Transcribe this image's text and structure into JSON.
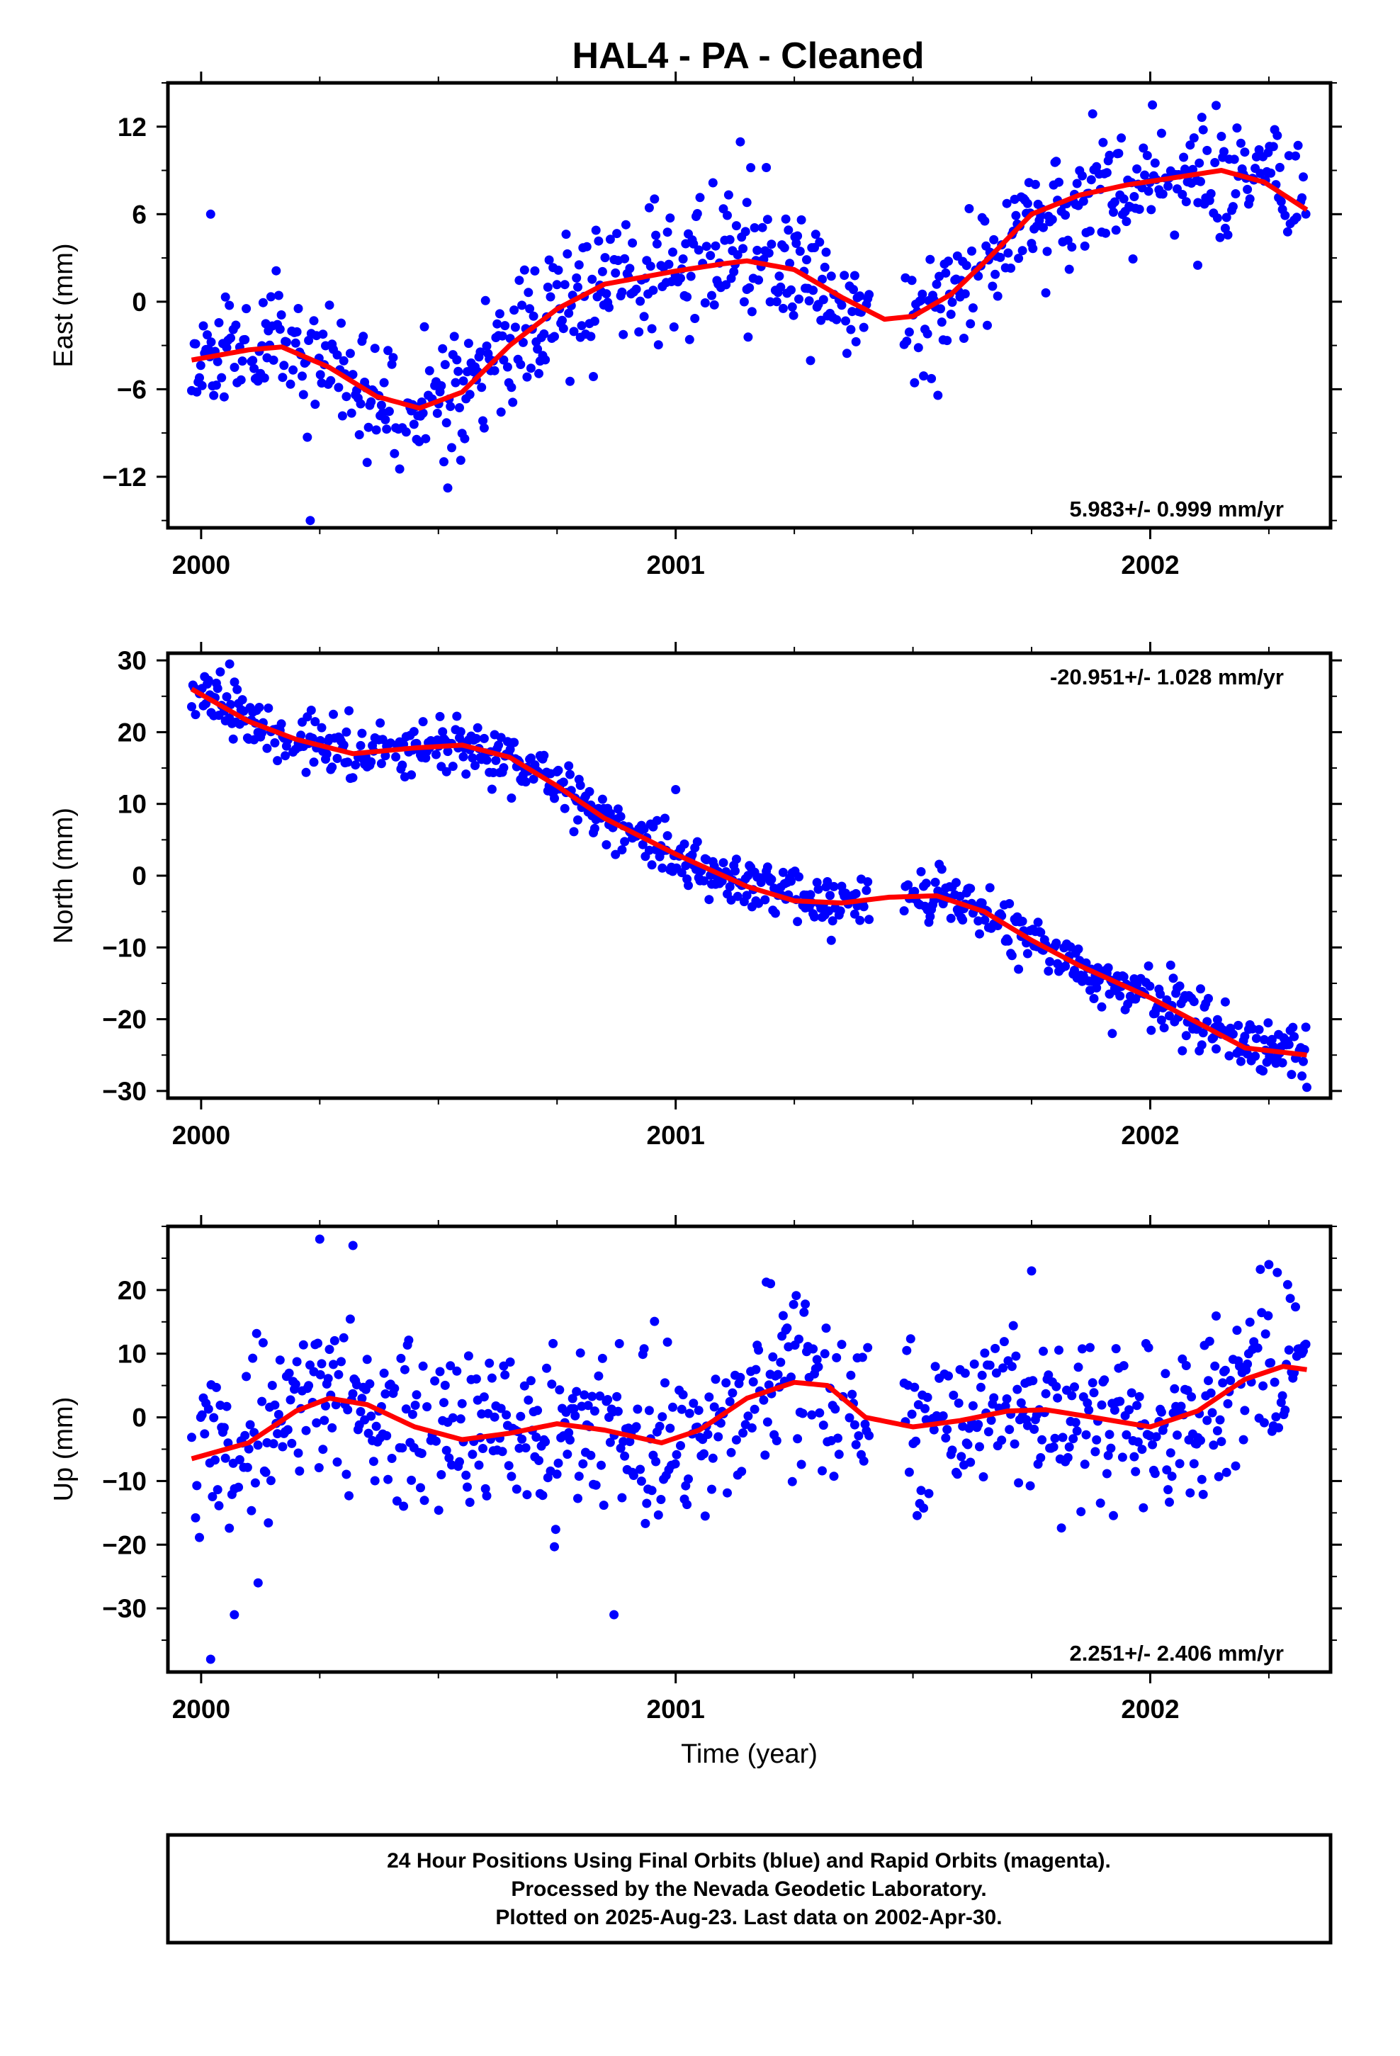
{
  "title": "HAL4  - PA - Cleaned",
  "colors": {
    "data": "#0000ff",
    "model": "#ff0000",
    "axes": "#000000"
  },
  "footer": {
    "lines": [
      "24 Hour Positions Using Final Orbits (blue) and Rapid Orbits (magenta).",
      "Processed by the Nevada Geodetic Laboratory.",
      "Plotted on 2025-Aug-23. Last data on 2002-Apr-30."
    ]
  },
  "chart_data": [
    {
      "type": "scatter",
      "panel": "east",
      "ylabel": "East (mm)",
      "xlabel": "",
      "xlim": [
        1999.93,
        2002.38
      ],
      "ylim": [
        -15.5,
        15
      ],
      "xticks": [
        2000,
        2001,
        2002
      ],
      "xtick_labels": [
        "2000",
        "2001",
        "2002"
      ],
      "yticks": [
        -12,
        -6,
        0,
        6,
        12
      ],
      "ytick_labels": [
        "−12",
        "−6",
        "0",
        "6",
        "12"
      ],
      "rate_label": "5.983+/- 0.999 mm/yr",
      "rate_position": "bottom-right",
      "data_range": [
        1999.98,
        2002.33
      ],
      "noise": 2.2,
      "seed": 11,
      "outliers": [
        [
          2000.02,
          6
        ],
        [
          2000.23,
          -15
        ],
        [
          2001.15,
          6.8
        ],
        [
          2002.1,
          2.5
        ]
      ],
      "gaps": [
        [
          2001.41,
          2001.48
        ]
      ],
      "model": {
        "x": [
          1999.98,
          2000.1,
          2000.17,
          2000.27,
          2000.37,
          2000.46,
          2000.55,
          2000.65,
          2000.75,
          2000.85,
          2001.0,
          2001.1,
          2001.15,
          2001.25,
          2001.35,
          2001.44,
          2001.5,
          2001.58,
          2001.66,
          2001.75,
          2001.85,
          2001.95,
          2002.05,
          2002.15,
          2002.24,
          2002.33
        ],
        "y": [
          -4,
          -3.3,
          -3.1,
          -4.5,
          -6.5,
          -7.3,
          -6.2,
          -3.0,
          -0.5,
          1.2,
          2.1,
          2.6,
          2.8,
          2.2,
          0.3,
          -1.2,
          -1.0,
          0.5,
          3.0,
          6.0,
          7.3,
          8.0,
          8.5,
          9.0,
          8.2,
          6.3
        ]
      }
    },
    {
      "type": "scatter",
      "panel": "north",
      "ylabel": "North (mm)",
      "xlabel": "",
      "xlim": [
        1999.93,
        2002.38
      ],
      "ylim": [
        -31,
        31
      ],
      "xticks": [
        2000,
        2001,
        2002
      ],
      "xtick_labels": [
        "2000",
        "2001",
        "2002"
      ],
      "yticks": [
        -30,
        -20,
        -10,
        0,
        10,
        20,
        30
      ],
      "ytick_labels": [
        "−30",
        "−20",
        "−10",
        "0",
        "10",
        "20",
        "30"
      ],
      "rate_label": "-20.951+/- 1.028 mm/yr",
      "rate_position": "top-right",
      "data_range": [
        1999.98,
        2002.33
      ],
      "noise": 1.9,
      "seed": 23,
      "outliers": [
        [
          2000.06,
          29.5
        ],
        [
          2001.0,
          12
        ],
        [
          2001.92,
          -22
        ],
        [
          2002.33,
          -29.5
        ]
      ],
      "gaps": [
        [
          2001.41,
          2001.48
        ]
      ],
      "model": {
        "x": [
          1999.98,
          2000.1,
          2000.2,
          2000.32,
          2000.45,
          2000.55,
          2000.65,
          2000.75,
          2000.85,
          2001.0,
          2001.15,
          2001.25,
          2001.35,
          2001.45,
          2001.55,
          2001.65,
          2001.75,
          2001.85,
          2002.0,
          2002.1,
          2002.2,
          2002.33
        ],
        "y": [
          26,
          21.5,
          19,
          17,
          17.8,
          18.2,
          16.5,
          12.5,
          8,
          3,
          -1.5,
          -3.5,
          -3.8,
          -3,
          -2.8,
          -5,
          -9,
          -12.5,
          -17,
          -20.5,
          -24,
          -25
        ]
      }
    },
    {
      "type": "scatter",
      "panel": "up",
      "ylabel": "Up (mm)",
      "xlabel": "Time (year)",
      "xlim": [
        1999.93,
        2002.38
      ],
      "ylim": [
        -40,
        30
      ],
      "xticks": [
        2000,
        2001,
        2002
      ],
      "xtick_labels": [
        "2000",
        "2001",
        "2002"
      ],
      "yticks": [
        -30,
        -20,
        -10,
        0,
        10,
        20
      ],
      "ytick_labels": [
        "−30",
        "−20",
        "−10",
        "0",
        "10",
        "20"
      ],
      "rate_label": "2.251+/- 2.406 mm/yr",
      "rate_position": "bottom-right",
      "data_range": [
        1999.98,
        2002.33
      ],
      "noise": 6.2,
      "seed": 37,
      "outliers": [
        [
          2000.02,
          -38
        ],
        [
          2000.07,
          -31
        ],
        [
          2000.12,
          -26
        ],
        [
          2000.25,
          28
        ],
        [
          2000.32,
          27
        ],
        [
          2000.87,
          -31
        ],
        [
          2001.2,
          21
        ],
        [
          2001.75,
          23
        ],
        [
          2002.25,
          24
        ]
      ],
      "gaps": [
        [
          2001.41,
          2001.48
        ]
      ],
      "model": {
        "x": [
          1999.98,
          2000.1,
          2000.2,
          2000.27,
          2000.35,
          2000.45,
          2000.55,
          2000.65,
          2000.75,
          2000.85,
          2000.97,
          2001.05,
          2001.15,
          2001.25,
          2001.32,
          2001.4,
          2001.5,
          2001.6,
          2001.7,
          2001.78,
          2001.88,
          2002.0,
          2002.1,
          2002.2,
          2002.28,
          2002.33
        ],
        "y": [
          -6.5,
          -4,
          1,
          3,
          2,
          -1.5,
          -3.5,
          -2.5,
          -1,
          -2,
          -4,
          -2,
          3,
          5.5,
          5,
          0,
          -1.5,
          -0.5,
          1,
          1.2,
          0,
          -1.5,
          1,
          6,
          8,
          7.5
        ]
      }
    }
  ]
}
